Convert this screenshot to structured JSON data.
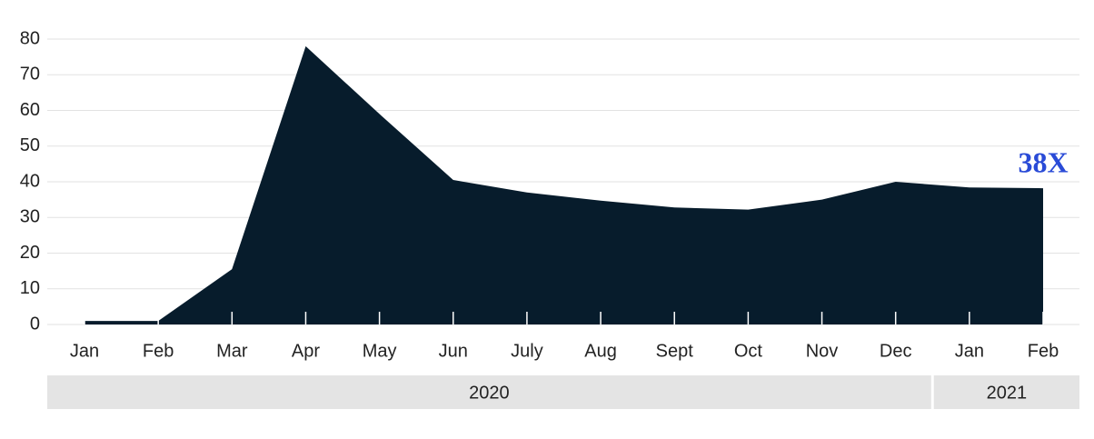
{
  "chart_data": {
    "type": "area",
    "categories": [
      "Jan",
      "Feb",
      "Mar",
      "Apr",
      "May",
      "Jun",
      "July",
      "Aug",
      "Sept",
      "Oct",
      "Nov",
      "Dec",
      "Jan",
      "Feb"
    ],
    "values": [
      1,
      1,
      15.5,
      78,
      59,
      40.5,
      37,
      34.7,
      32.8,
      32.2,
      35,
      40,
      38.4,
      38.2
    ],
    "color": "#071c2c",
    "groups": [
      "2020",
      "2021"
    ],
    "annotation": "38X",
    "annotation_color": "#2a4bd7",
    "ylim": [
      0,
      80
    ],
    "yticks": [
      0,
      10,
      20,
      30,
      40,
      50,
      60,
      70,
      80
    ],
    "grid": true
  }
}
